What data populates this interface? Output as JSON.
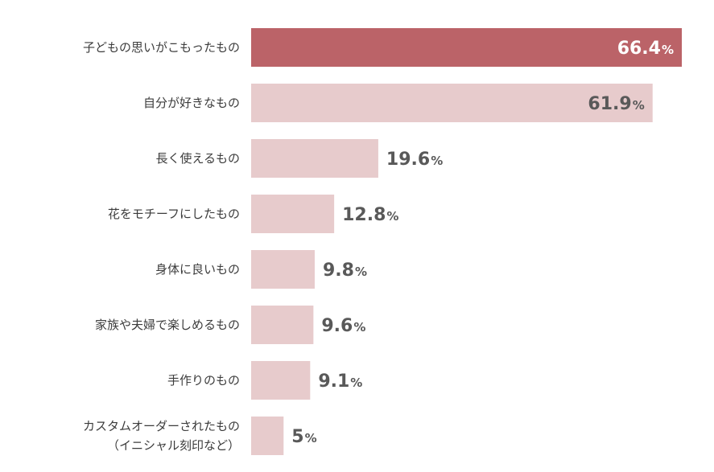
{
  "chart_data": {
    "type": "bar",
    "orientation": "horizontal",
    "categories": [
      "子どもの思いがこもったもの",
      "自分が好きなもの",
      "長く使えるもの",
      "花をモチーフにしたもの",
      "身体に良いもの",
      "家族や夫婦で楽しめるもの",
      "手作りのもの",
      "カスタムオーダーされたもの\n（イニシャル刻印など）"
    ],
    "values": [
      66.4,
      61.9,
      19.6,
      12.8,
      9.8,
      9.6,
      9.1,
      5
    ],
    "value_labels": [
      "66.4",
      "61.9",
      "19.6",
      "12.8",
      "9.8",
      "9.6",
      "9.1",
      "5"
    ],
    "value_suffix": "%",
    "title": "",
    "xlabel": "",
    "ylabel": "",
    "xlim": [
      0,
      66.4
    ],
    "grid": false,
    "legend": "none",
    "colors": {
      "highlight_bar": "#bb6368",
      "bar": "#e7cbcc",
      "label_on_bar": "#ffffff",
      "label_outside": "#595959",
      "category_text": "#3c3c3c"
    }
  }
}
